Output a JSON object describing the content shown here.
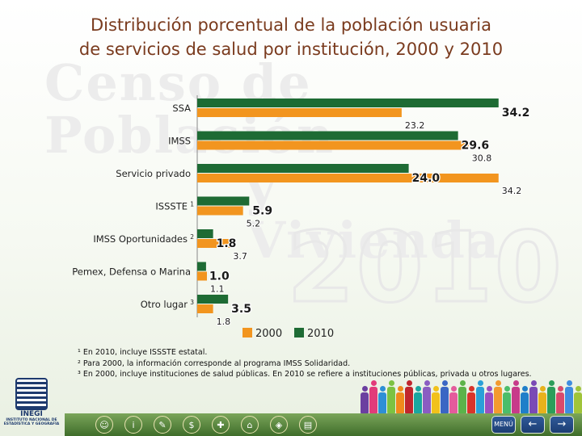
{
  "title": {
    "line1": "Distribución porcentual de la población usuaria",
    "line2": "de servicios de salud por institución, 2000 y 2010"
  },
  "watermark": {
    "line1": "Censo de Población",
    "line2": "y Vivienda",
    "year": "2010"
  },
  "chart_data": {
    "type": "bar",
    "orientation": "horizontal",
    "categories": [
      "SSA",
      "IMSS",
      "Servicio privado",
      "ISSSTE",
      "IMSS Oportunidades",
      "Pemex, Defensa o Marina",
      "Otro lugar"
    ],
    "category_superscripts": [
      "",
      "",
      "",
      "1",
      "2",
      "",
      "3"
    ],
    "series": [
      {
        "name": "2010",
        "color": "#1e6b34",
        "values": [
          34.2,
          29.6,
          24.0,
          5.9,
          1.8,
          1.0,
          3.5
        ],
        "labels": [
          "34.2",
          "29.6",
          "24.0",
          "5.9",
          "1.8",
          "1.0",
          "3.5"
        ]
      },
      {
        "name": "2000",
        "color": "#f2951f",
        "values": [
          23.2,
          30.8,
          34.2,
          5.2,
          3.7,
          1.1,
          1.8
        ],
        "labels": [
          "23.2",
          "30.8",
          "34.2",
          "5.2",
          "3.7",
          "1.1",
          "1.8"
        ]
      }
    ],
    "legend": {
      "position": "bottom",
      "order": [
        "2000",
        "2010"
      ]
    },
    "grid": false
  },
  "footnotes": [
    "¹ En 2010, incluye ISSSTE estatal.",
    "² Para 2000, la información corresponde al programa IMSS Solidaridad.",
    "³ En 2000, incluye instituciones de salud públicas. En 2010 se refiere a instituciones públicas, privada u otros lugares."
  ],
  "logo": {
    "name": "INEGI",
    "subtitle": "INSTITUTO NACIONAL DE ESTADÍSTICA Y GEOGRAFÍA"
  },
  "nav": {
    "menu_label": "MENÚ",
    "prev_label": "←",
    "next_label": "→"
  },
  "people_colors": [
    "#6b3fa0",
    "#e23b7a",
    "#2e8fd6",
    "#7cc242",
    "#f08a1c",
    "#c0262d",
    "#1aa7a0",
    "#8a5cc2",
    "#f2c11a",
    "#3a66c4",
    "#e45b9c",
    "#5bb34a",
    "#d9342b",
    "#2aa0d8",
    "#9b4fc0",
    "#f39a2e",
    "#4bbd6a",
    "#c73a8a",
    "#1f7fc9",
    "#7a4ab5",
    "#e8b21c",
    "#2b9e5a",
    "#d94a6c",
    "#3f8de0",
    "#a0c43a",
    "#c2402f",
    "#6b3fa0",
    "#1aa7a0"
  ]
}
